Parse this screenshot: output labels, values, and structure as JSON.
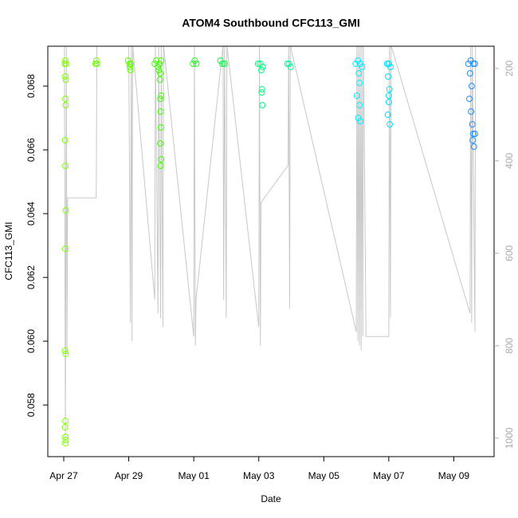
{
  "chart_data": {
    "type": "scatter",
    "title": "ATOM4 Southbound CFC113_GMI",
    "x_label": "Date",
    "y_label": "CFC113_GMI",
    "xlim": [
      -0.49,
      13.24
    ],
    "xticks": [
      {
        "value": 0,
        "label": "Apr 27"
      },
      {
        "value": 2,
        "label": "Apr 29"
      },
      {
        "value": 4,
        "label": "May 01"
      },
      {
        "value": 6,
        "label": "May 03"
      },
      {
        "value": 8,
        "label": "May 05"
      },
      {
        "value": 10,
        "label": "May 07"
      },
      {
        "value": 12,
        "label": "May 09"
      }
    ],
    "ylim": [
      0.05638,
      0.06925
    ],
    "yticks": [
      0.058,
      {
        "value": 0.06,
        "label": "0.060"
      },
      0.062,
      0.064,
      0.066,
      0.068
    ],
    "y2lim": [
      1040,
      152
    ],
    "y2ticks": [
      200,
      400,
      600,
      800,
      1000
    ],
    "series": [
      {
        "color": "#80ff00",
        "x": [
          0.03,
          0.05,
          0.07,
          0.05,
          0.06,
          0.05,
          0.06,
          0.04,
          0.05,
          0.06,
          0.05,
          0.04,
          0.06,
          0.05,
          0.04,
          0.05,
          0.06,
          0.05
        ],
        "values": [
          0.0687,
          0.0688,
          0.0687,
          0.0683,
          0.0682,
          0.0676,
          0.0674,
          0.0663,
          0.0655,
          0.0641,
          0.0629,
          0.0597,
          0.0596,
          0.0575,
          0.0573,
          0.057,
          0.0569,
          0.0568
        ]
      },
      {
        "color": "#70ff00",
        "x": [
          0.98,
          1.0,
          1.02
        ],
        "values": [
          0.0687,
          0.0688,
          0.0687
        ]
      },
      {
        "color": "#5fff00",
        "x": [
          1.98,
          2.02,
          2.06,
          2.03,
          2.05
        ],
        "values": [
          0.0688,
          0.0687,
          0.0687,
          0.0686,
          0.0685
        ]
      },
      {
        "color": "#40ff00",
        "x": [
          2.8,
          2.85,
          2.9,
          2.95,
          3.0,
          2.92,
          2.97,
          2.96,
          3.0,
          2.98,
          2.99,
          2.97,
          3.0,
          2.98,
          2.97
        ],
        "values": [
          0.0687,
          0.0688,
          0.0686,
          0.0687,
          0.0688,
          0.0685,
          0.0684,
          0.0682,
          0.0677,
          0.0672,
          0.0667,
          0.0662,
          0.0657,
          0.0655,
          0.0676
        ]
      },
      {
        "color": "#20ff20",
        "x": [
          3.98,
          4.03,
          4.08
        ],
        "values": [
          0.0687,
          0.0688,
          0.0687
        ]
      },
      {
        "color": "#00ff40",
        "x": [
          4.82,
          4.88,
          4.95
        ],
        "values": [
          0.0688,
          0.0687,
          0.0687
        ]
      },
      {
        "color": "#00ff80",
        "x": [
          5.98,
          6.05,
          6.12,
          6.08,
          6.1,
          6.09,
          6.11
        ],
        "values": [
          0.0687,
          0.0687,
          0.0686,
          0.0685,
          0.0679,
          0.0678,
          0.0674
        ]
      },
      {
        "color": "#00ffa0",
        "x": [
          6.88,
          6.93,
          6.98
        ],
        "values": [
          0.0687,
          0.0687,
          0.0686
        ]
      },
      {
        "color": "#00f0ff",
        "x": [
          8.98,
          9.05,
          9.12,
          9.18,
          9.08,
          9.1,
          9.02,
          9.1,
          9.06,
          9.12
        ],
        "values": [
          0.0687,
          0.0688,
          0.0687,
          0.0686,
          0.0684,
          0.0681,
          0.0677,
          0.0674,
          0.067,
          0.0669
        ]
      },
      {
        "color": "#00e0ff",
        "x": [
          9.95,
          10.0,
          10.05,
          9.98,
          10.02,
          10.0,
          9.97,
          10.03,
          10.0
        ],
        "values": [
          0.0687,
          0.0687,
          0.0686,
          0.0683,
          0.0679,
          0.0675,
          0.0671,
          0.0668,
          0.0677
        ]
      },
      {
        "color": "#1e90ff",
        "x": [
          12.45,
          12.52,
          12.6,
          12.65,
          12.5,
          12.55,
          12.48,
          12.53,
          12.57,
          12.6,
          12.65,
          12.58,
          12.62
        ],
        "values": [
          0.0687,
          0.0688,
          0.0687,
          0.0687,
          0.0684,
          0.068,
          0.0676,
          0.0672,
          0.0668,
          0.0665,
          0.0665,
          0.0663,
          0.0661
        ]
      },
      {
        "color": "#c8c8c8",
        "axis": "y2",
        "line": true,
        "x": [
          0.02,
          0.05,
          0.08,
          0.1,
          0.12,
          1.0,
          1.02,
          2.0,
          2.05,
          2.08,
          2.1,
          2.12,
          2.8,
          2.82,
          2.9,
          2.92,
          2.98,
          3.0,
          3.05,
          3.07,
          4.0,
          4.02,
          4.05,
          4.07,
          4.9,
          4.92,
          4.95,
          5.0,
          5.02,
          6.0,
          6.02,
          6.05,
          6.07,
          6.9,
          6.92,
          6.95,
          6.97,
          9.0,
          9.02,
          9.05,
          9.07,
          9.1,
          9.12,
          9.15,
          9.17,
          9.2,
          9.22,
          9.3,
          10.0,
          10.02,
          10.05,
          10.07,
          12.5,
          12.52,
          12.55,
          12.57,
          12.65,
          12.67
        ],
        "values": [
          150,
          1000,
          150,
          820,
          480,
          480,
          150,
          150,
          750,
          150,
          790,
          150,
          700,
          150,
          730,
          150,
          740,
          150,
          760,
          150,
          780,
          150,
          800,
          700,
          150,
          700,
          150,
          740,
          150,
          760,
          150,
          800,
          490,
          410,
          150,
          720,
          150,
          770,
          150,
          790,
          150,
          800,
          150,
          810,
          150,
          780,
          150,
          780,
          780,
          150,
          740,
          150,
          730,
          150,
          750,
          150,
          770,
          150
        ]
      }
    ]
  }
}
